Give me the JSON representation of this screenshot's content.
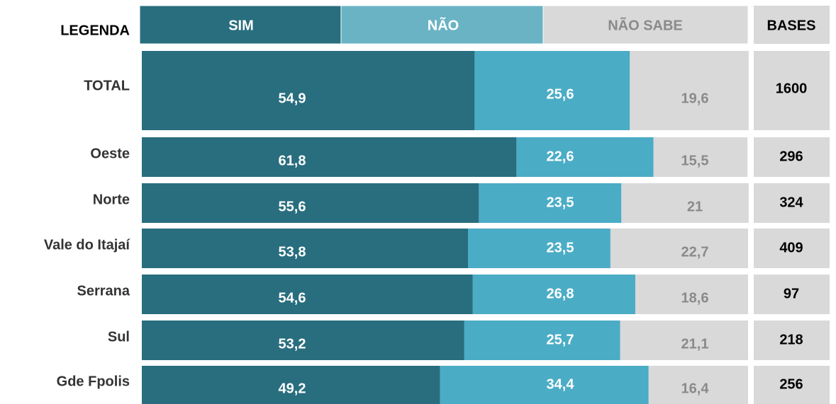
{
  "chart_data": {
    "type": "stacked_bar_h",
    "legend_title": "LEGENDA",
    "bases_title": "BASES",
    "categories": [
      "TOTAL",
      "Oeste",
      "Norte",
      "Vale do Itajaí",
      "Serrana",
      "Sul",
      "Gde Fpolis"
    ],
    "series": [
      {
        "name": "SIM",
        "color": "#286e7e",
        "values": [
          54.9,
          61.8,
          55.6,
          53.8,
          54.6,
          53.2,
          49.2
        ],
        "value_labels": [
          "54,9",
          "61,8",
          "55,6",
          "53,8",
          "54,6",
          "53,2",
          "49,2"
        ]
      },
      {
        "name": "NÃO",
        "color": "#4bacc6",
        "values": [
          25.6,
          22.6,
          23.5,
          23.5,
          26.8,
          25.7,
          34.4
        ],
        "value_labels": [
          "25,6",
          "22,6",
          "23,5",
          "23,5",
          "26,8",
          "25,7",
          "34,4"
        ]
      },
      {
        "name": "NÃO SABE",
        "color": "#d9d9d9",
        "values": [
          19.6,
          15.5,
          21,
          22.7,
          18.6,
          21.1,
          16.4
        ],
        "value_labels": [
          "19,6",
          "15,5",
          "21",
          "22,7",
          "18,6",
          "21,1",
          "16,4"
        ]
      }
    ],
    "bases": [
      1600,
      296,
      324,
      409,
      97,
      218,
      256
    ],
    "xlim": [
      0,
      100
    ]
  }
}
